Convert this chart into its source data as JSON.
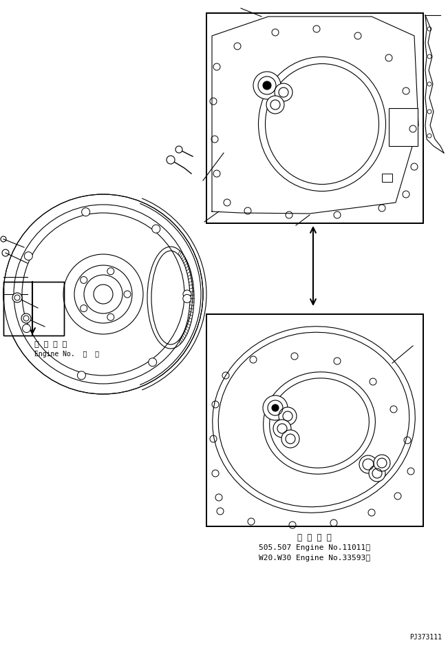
{
  "bg_color": "#ffffff",
  "line_color": "#000000",
  "fig_width": 6.51,
  "fig_height": 9.42,
  "dpi": 100,
  "text_bottom_japanese": "適 用 号 機",
  "text_bottom_line1": "505.507 Engine No.11011～",
  "text_bottom_line2": "W20.W30 Engine No.33593～",
  "text_left_japanese": "適 用 号 機",
  "text_left_line1": "Engine No.  ・  ～",
  "part_number": "PJ373111"
}
